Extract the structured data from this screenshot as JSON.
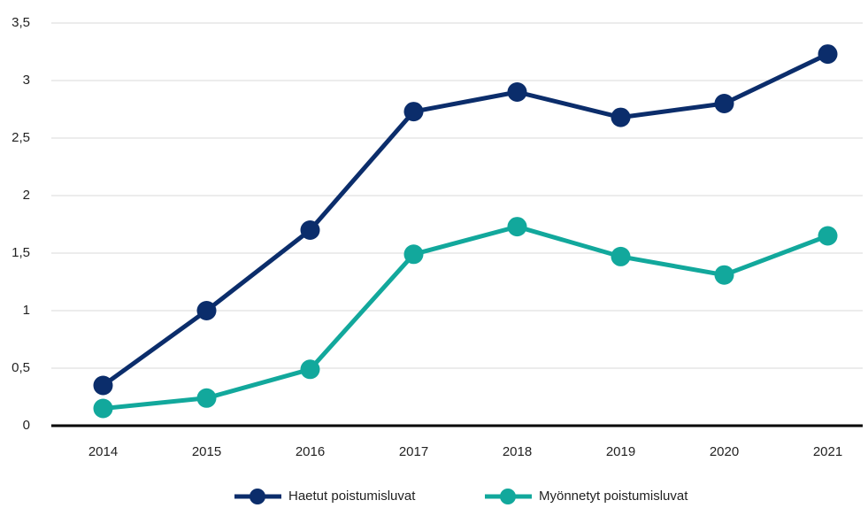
{
  "chart_data": {
    "type": "line",
    "categories": [
      "2014",
      "2015",
      "2016",
      "2017",
      "2018",
      "2019",
      "2020",
      "2021"
    ],
    "series": [
      {
        "name": "Haetut poistumisluvat",
        "color": "#0b2d6b",
        "values": [
          0.35,
          1.0,
          1.7,
          2.73,
          2.9,
          2.68,
          2.8,
          3.23
        ]
      },
      {
        "name": "Myönnetyt poistumisluvat",
        "color": "#12a89c",
        "values": [
          0.15,
          0.24,
          0.49,
          1.49,
          1.73,
          1.47,
          1.31,
          1.65
        ]
      }
    ],
    "ylim": [
      0,
      3.5
    ],
    "yticks": [
      0,
      {
        "value": 0.5,
        "label": "0,5"
      },
      1,
      {
        "value": 1.5,
        "label": "1,5"
      },
      2,
      {
        "value": 2.5,
        "label": "2,5"
      },
      3,
      {
        "value": 3.5,
        "label": "3,5"
      }
    ],
    "grid": true,
    "legend": "bottom"
  }
}
